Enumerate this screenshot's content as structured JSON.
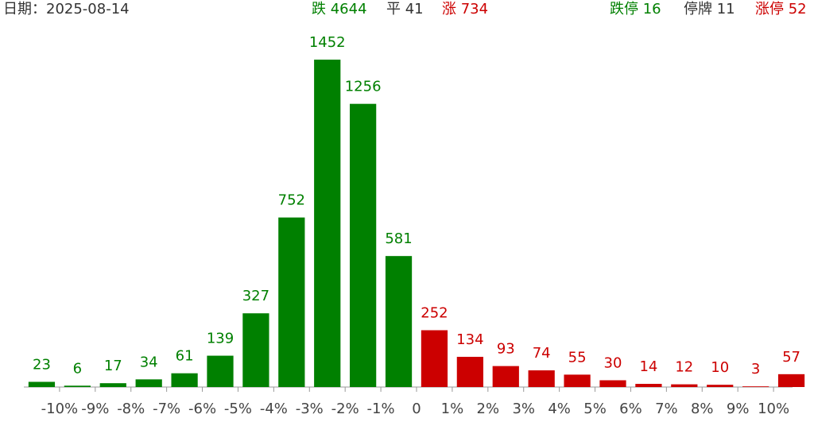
{
  "header": {
    "date": "日期：2025-08-14",
    "items": [
      {
        "text": "跌 4644",
        "color": "#008000"
      },
      {
        "text": "平 41",
        "color": "#333333"
      },
      {
        "text": "涨 734",
        "color": "#cc0000"
      },
      {
        "text": "跌停 16",
        "color": "#008000"
      },
      {
        "text": "停牌 11",
        "color": "#333333"
      },
      {
        "text": "涨停 52",
        "color": "#cc0000"
      }
    ]
  },
  "chart_data": {
    "type": "histogram",
    "bins": [
      -11,
      -10,
      -9,
      -8,
      -7,
      -6,
      -5,
      -4,
      -3,
      -2,
      -1,
      0,
      1,
      2,
      3,
      4,
      5,
      6,
      7,
      8,
      9,
      10,
      11
    ],
    "values": [
      23,
      6,
      17,
      34,
      61,
      139,
      327,
      752,
      1452,
      1256,
      581,
      252,
      134,
      93,
      74,
      55,
      30,
      14,
      12,
      10,
      3,
      57
    ],
    "color_negative": "#008000",
    "color_positive": "#cc0000",
    "xlim": [
      -11,
      11
    ],
    "ylim": [
      0,
      1500
    ],
    "xticks": [
      {
        "value": -10,
        "label": "-10%"
      },
      {
        "value": -9,
        "label": "-9%"
      },
      {
        "value": -8,
        "label": "-8%"
      },
      {
        "value": -7,
        "label": "-7%"
      },
      {
        "value": -6,
        "label": "-6%"
      },
      {
        "value": -5,
        "label": "-5%"
      },
      {
        "value": -4,
        "label": "-4%"
      },
      {
        "value": -3,
        "label": "-3%"
      },
      {
        "value": -2,
        "label": "-2%"
      },
      {
        "value": -1,
        "label": "-1%"
      },
      0,
      {
        "value": 1,
        "label": "1%"
      },
      {
        "value": 2,
        "label": "2%"
      },
      {
        "value": 3,
        "label": "3%"
      },
      {
        "value": 4,
        "label": "4%"
      },
      {
        "value": 5,
        "label": "5%"
      },
      {
        "value": 6,
        "label": "6%"
      },
      {
        "value": 7,
        "label": "7%"
      },
      {
        "value": 8,
        "label": "8%"
      },
      {
        "value": 9,
        "label": "9%"
      },
      {
        "value": 10,
        "label": "10%"
      }
    ]
  }
}
